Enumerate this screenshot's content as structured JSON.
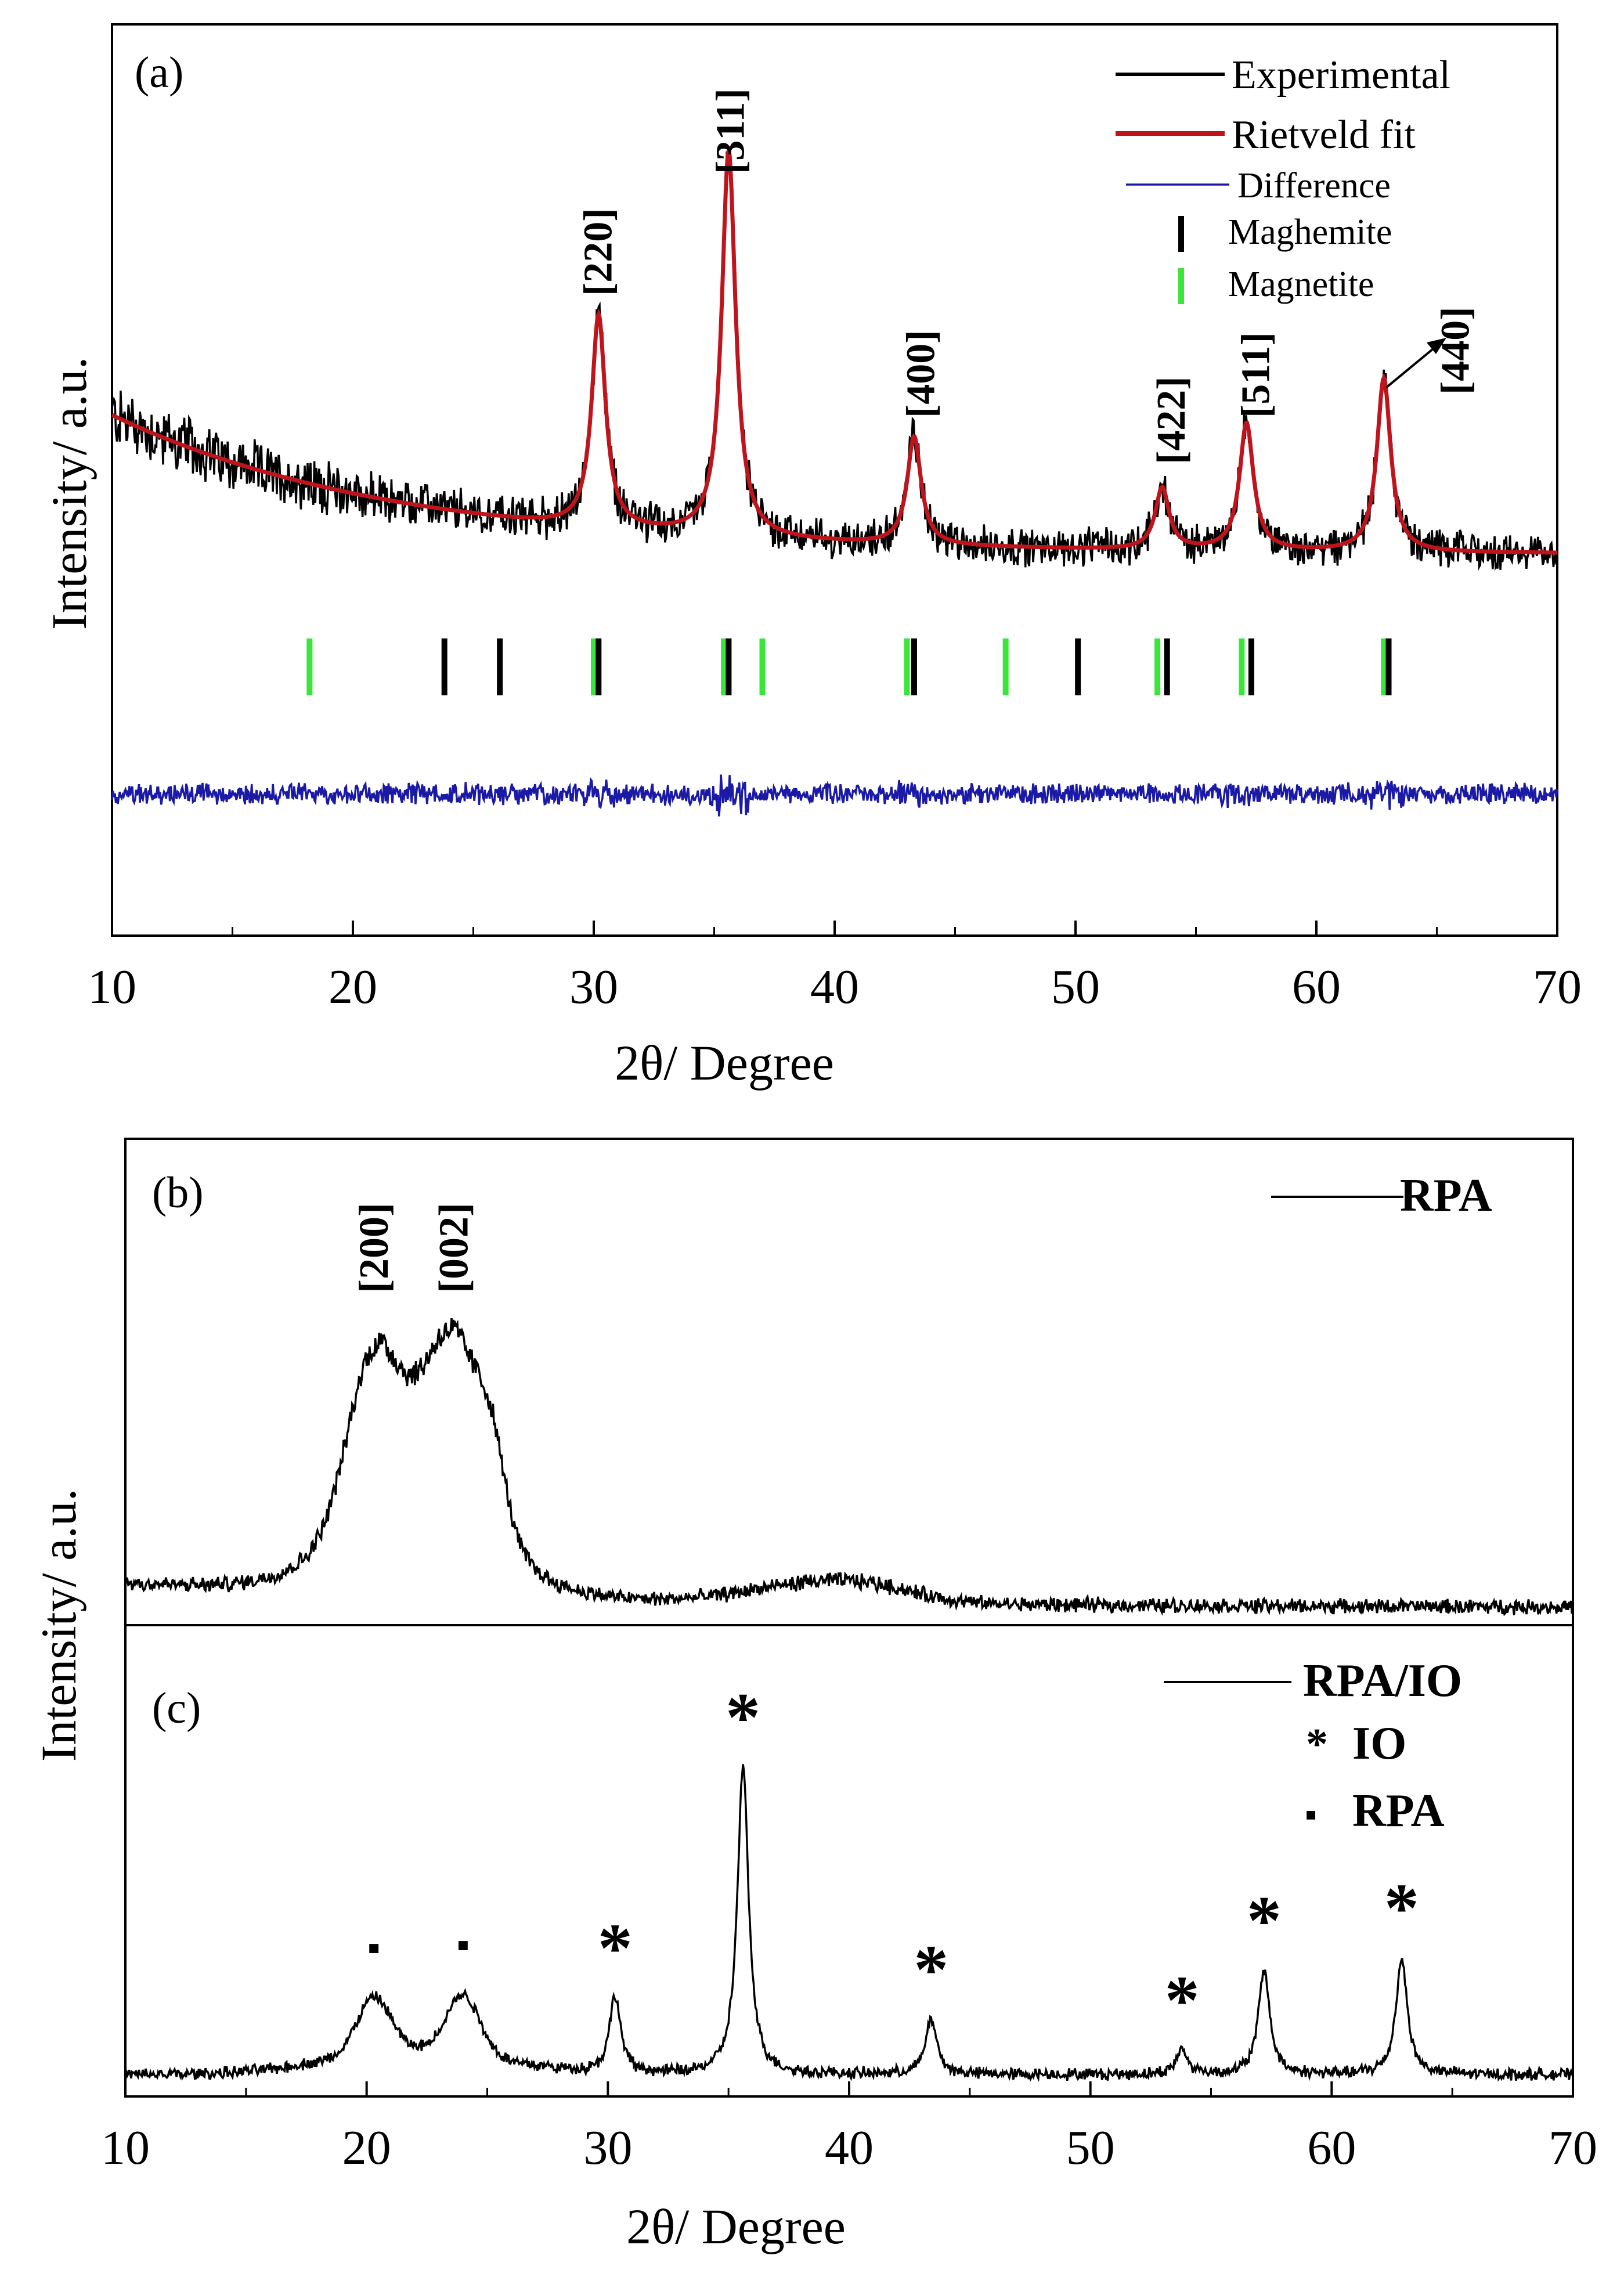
{
  "chart_data": [
    {
      "panel": "a",
      "type": "line",
      "panel_label": "(a)",
      "xlabel": "2θ/ Degree",
      "ylabel": "Intensity/ a.u.",
      "xlim": [
        10,
        70
      ],
      "x_ticks": [
        10,
        20,
        30,
        40,
        50,
        60,
        70
      ],
      "x_tick_labels": [
        "10",
        "20",
        "30",
        "40",
        "50",
        "60",
        "70"
      ],
      "legend": {
        "placement": "top-right",
        "entries": [
          {
            "label": "Experimental",
            "color": "#000000",
            "kind": "line"
          },
          {
            "label": "Rietveld fit",
            "color": "#c0141c",
            "kind": "line"
          },
          {
            "label": "Difference",
            "color": "#1a1aa6",
            "kind": "line"
          },
          {
            "label": "Maghemite",
            "color": "#000000",
            "kind": "bar"
          },
          {
            "label": "Magnetite",
            "color": "#39e639",
            "kind": "bar"
          }
        ]
      },
      "peaks": [
        {
          "label": "[220]",
          "x": 30.2,
          "height": 0.55
        },
        {
          "label": "[311]",
          "x": 35.6,
          "height": 1.0
        },
        {
          "label": "[400]",
          "x": 43.3,
          "height": 0.28
        },
        {
          "label": "[422]",
          "x": 53.6,
          "height": 0.16
        },
        {
          "label": "[511]",
          "x": 57.1,
          "height": 0.33
        },
        {
          "label": "[440]",
          "x": 62.8,
          "height": 0.45
        }
      ],
      "peak_width": 0.35,
      "background": {
        "start": 0.38,
        "end": 0.02
      },
      "maghemite_reflections": [
        23.8,
        26.1,
        30.2,
        35.6,
        43.3,
        50.1,
        53.8,
        57.3,
        63.0
      ],
      "magnetite_reflections": [
        18.2,
        30.0,
        35.4,
        37.0,
        43.0,
        47.1,
        53.4,
        56.9,
        62.8
      ],
      "colors": {
        "experimental": "#000000",
        "fit": "#c0141c",
        "difference": "#1a1aa6",
        "maghemite": "#000000",
        "magnetite": "#39e639"
      }
    },
    {
      "panel": "b",
      "type": "line",
      "panel_label": "(b)",
      "series_name": "RPA",
      "peaks": [
        {
          "label": "[200]",
          "x": 20.3,
          "height": 0.9
        },
        {
          "label": "[002]",
          "x": 23.6,
          "height": 1.0
        }
      ],
      "broad_peaks": [
        {
          "x": 20.3,
          "w": 1.1,
          "h": 0.55
        },
        {
          "x": 23.6,
          "w": 1.3,
          "h": 0.62
        },
        {
          "x": 22.0,
          "w": 3.2,
          "h": 0.25
        },
        {
          "x": 25.2,
          "w": 0.5,
          "h": 0.15
        },
        {
          "x": 38.0,
          "w": 2.5,
          "h": 0.05
        },
        {
          "x": 41.0,
          "w": 2.0,
          "h": 0.04
        }
      ],
      "noise": 0.035,
      "background": {
        "start": 0.08,
        "end": 0.0
      }
    },
    {
      "panel": "c",
      "type": "line",
      "panel_label": "(c)",
      "series_name": "RPA/IO",
      "xlabel": "2θ/ Degree",
      "ylabel": "Intensity/ a.u.",
      "xlim": [
        10,
        70
      ],
      "x_ticks": [
        10,
        20,
        30,
        40,
        50,
        60,
        70
      ],
      "x_tick_labels": [
        "10",
        "20",
        "30",
        "40",
        "50",
        "60",
        "70"
      ],
      "legend": {
        "placement": "top-right",
        "entries": [
          {
            "label": "RPA/IO",
            "kind": "line"
          },
          {
            "label": "IO",
            "marker": "*"
          },
          {
            "label": "RPA",
            "marker": "▪"
          }
        ]
      },
      "io_peaks": [
        30.3,
        35.6,
        43.4,
        53.8,
        57.2,
        62.9
      ],
      "io_heights": [
        0.25,
        1.0,
        0.18,
        0.08,
        0.34,
        0.38
      ],
      "rpa_peaks": [
        20.3,
        24.0
      ],
      "rpa_heights": [
        0.18,
        0.19
      ],
      "io_marker": "*",
      "rpa_marker": "▪",
      "noise": 0.03
    }
  ]
}
